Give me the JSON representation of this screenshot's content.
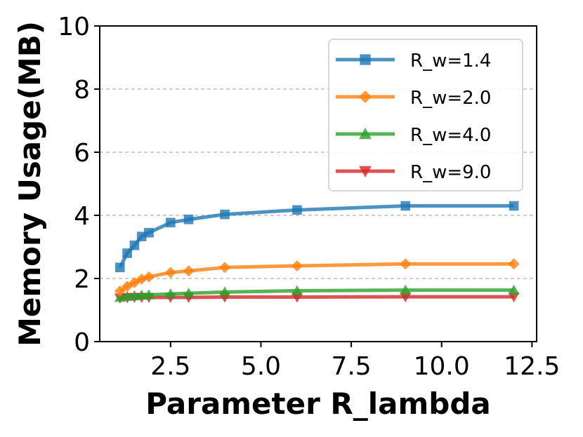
{
  "chart_data": {
    "type": "line",
    "title": "",
    "xlabel": "Parameter R_lambda",
    "ylabel": "Memory Usage(MB)",
    "xlim": [
      0.54,
      12.63
    ],
    "ylim": [
      0,
      10
    ],
    "xticks": [
      2.5,
      5.0,
      7.5,
      10.0,
      12.5
    ],
    "xtick_labels": [
      "2.5",
      "5.0",
      "7.5",
      "10.0",
      "12.5"
    ],
    "yticks": [
      0,
      2,
      4,
      6,
      8,
      10
    ],
    "ytick_labels": [
      "0",
      "2",
      "4",
      "6",
      "8",
      "10"
    ],
    "grid": "horizontal dashed",
    "legend_position": "top-right",
    "x": [
      1.1,
      1.3,
      1.5,
      1.7,
      1.9,
      2.5,
      3.0,
      4.0,
      6.0,
      9.0,
      12.0
    ],
    "series": [
      {
        "name": "R_w=1.4",
        "color": "#1f77b4",
        "marker": "square",
        "values": [
          2.35,
          2.8,
          3.05,
          3.33,
          3.45,
          3.77,
          3.87,
          4.03,
          4.17,
          4.3,
          4.3
        ]
      },
      {
        "name": "R_w=2.0",
        "color": "#ff7f0e",
        "marker": "diamond",
        "values": [
          1.6,
          1.75,
          1.87,
          1.98,
          2.05,
          2.19,
          2.24,
          2.35,
          2.4,
          2.46,
          2.46
        ]
      },
      {
        "name": "R_w=4.0",
        "color": "#2ca02c",
        "marker": "triangle-up",
        "values": [
          1.4,
          1.43,
          1.45,
          1.47,
          1.48,
          1.51,
          1.53,
          1.57,
          1.61,
          1.63,
          1.63
        ]
      },
      {
        "name": "R_w=9.0",
        "color": "#d62728",
        "marker": "triangle-down",
        "values": [
          1.38,
          1.39,
          1.4,
          1.4,
          1.4,
          1.4,
          1.4,
          1.41,
          1.41,
          1.42,
          1.42
        ]
      }
    ]
  }
}
